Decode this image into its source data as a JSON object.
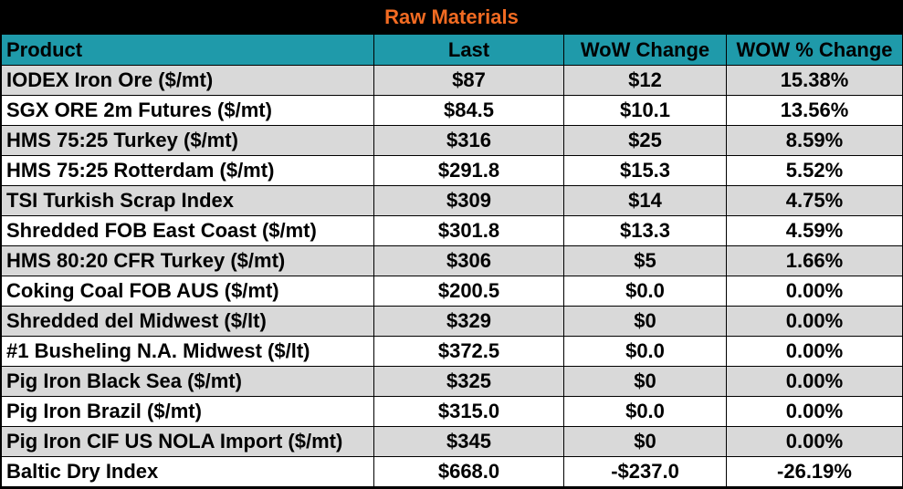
{
  "title": "Raw Materials",
  "columns": [
    "Product",
    "Last",
    "WoW Change",
    "WOW % Change"
  ],
  "rows": [
    {
      "product": "IODEX  Iron Ore ($/mt)",
      "last": "$87",
      "wow": "$12",
      "pct": "15.38%"
    },
    {
      "product": "SGX ORE 2m Futures ($/mt)",
      "last": "$84.5",
      "wow": "$10.1",
      "pct": "13.56%"
    },
    {
      "product": "HMS 75:25 Turkey ($/mt)",
      "last": "$316",
      "wow": "$25",
      "pct": "8.59%"
    },
    {
      "product": "HMS 75:25 Rotterdam ($/mt)",
      "last": "$291.8",
      "wow": "$15.3",
      "pct": "5.52%"
    },
    {
      "product": "TSI Turkish Scrap Index",
      "last": "$309",
      "wow": "$14",
      "pct": "4.75%"
    },
    {
      "product": "Shredded FOB East Coast ($/mt)",
      "last": "$301.8",
      "wow": "$13.3",
      "pct": "4.59%"
    },
    {
      "product": "HMS 80:20 CFR Turkey ($/mt)",
      "last": "$306",
      "wow": "$5",
      "pct": "1.66%"
    },
    {
      "product": "Coking Coal FOB AUS ($/mt)",
      "last": "$200.5",
      "wow": "$0.0",
      "pct": "0.00%"
    },
    {
      "product": "Shredded del  Midwest ($/lt)",
      "last": "$329",
      "wow": "$0",
      "pct": "0.00%"
    },
    {
      "product": "#1 Busheling N.A. Midwest ($/lt)",
      "last": "$372.5",
      "wow": "$0.0",
      "pct": "0.00%"
    },
    {
      "product": "Pig Iron Black Sea ($/mt)",
      "last": "$325",
      "wow": "$0",
      "pct": "0.00%"
    },
    {
      "product": "Pig Iron Brazil ($/mt)",
      "last": "$315.0",
      "wow": "$0.0",
      "pct": "0.00%"
    },
    {
      "product": "Pig Iron CIF US NOLA Import ($/mt)",
      "last": "$345",
      "wow": "$0",
      "pct": "0.00%"
    },
    {
      "product": "Baltic Dry Index",
      "last": "$668.0",
      "wow": "-$237.0",
      "pct": "-26.19%"
    }
  ],
  "colors": {
    "title": "#f26b22",
    "header": "#1f9aaa",
    "row_alt": "#d9d9d9",
    "row": "#ffffff",
    "background": "#000000"
  }
}
